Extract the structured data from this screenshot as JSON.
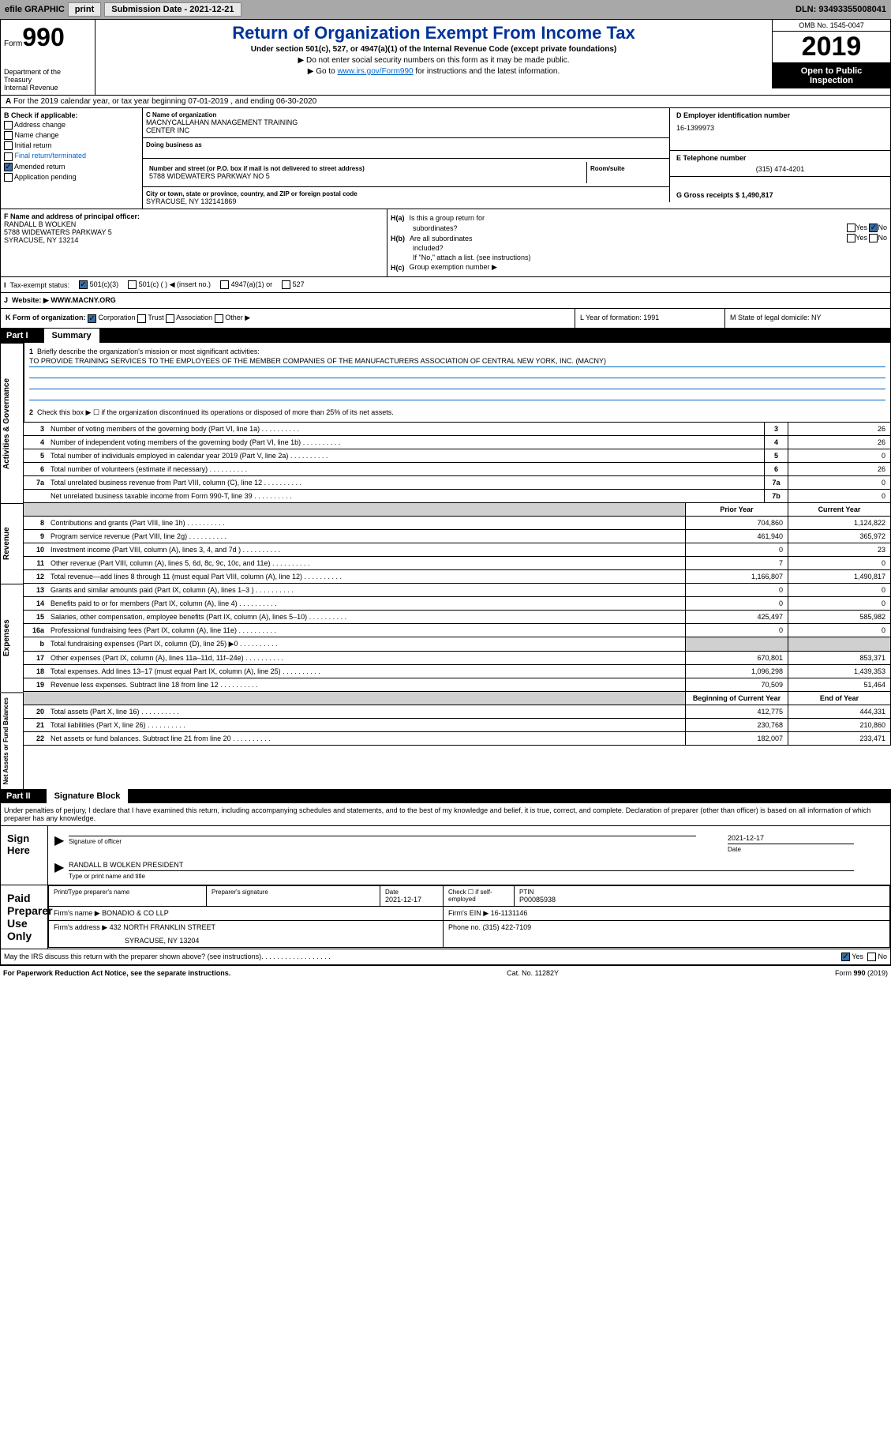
{
  "toolbar": {
    "efile_label": "efile GRAPHIC",
    "print_btn": "print",
    "sub_date_label": "Submission Date - 2021-12-21",
    "dln_label": "DLN: 93493355008041"
  },
  "header": {
    "form_prefix": "Form",
    "form_number": "990",
    "dept1": "Department of the",
    "dept2": "Treasury",
    "dept3": "Internal Revenue",
    "title": "Return of Organization Exempt From Income Tax",
    "subtitle": "Under section 501(c), 527, or 4947(a)(1) of the Internal Revenue Code (except private foundations)",
    "note1": "▶ Do not enter social security numbers on this form as it may be made public.",
    "note2_pre": "▶ Go to ",
    "note2_link": "www.irs.gov/Form990",
    "note2_post": " for instructions and the latest information.",
    "omb": "OMB No. 1545-0047",
    "year": "2019",
    "public1": "Open to Public",
    "public2": "Inspection"
  },
  "row_a": "For the 2019 calendar year, or tax year beginning 07-01-2019    , and ending 06-30-2020",
  "box_b": {
    "header": "B Check if applicable:",
    "items": [
      "Address change",
      "Name change",
      "Initial return",
      "Final return/terminated",
      "Amended return",
      "Application pending"
    ],
    "amended_checked": true
  },
  "box_c": {
    "name_label": "C Name of organization",
    "name1": "MACNYCALLAHAN MANAGEMENT TRAINING",
    "name2": "CENTER INC",
    "dba_label": "Doing business as",
    "addr_label": "Number and street (or P.O. box if mail is not delivered to street address)",
    "room_label": "Room/suite",
    "addr": "5788 WIDEWATERS PARKWAY NO 5",
    "city_label": "City or town, state or province, country, and ZIP or foreign postal code",
    "city": "SYRACUSE, NY  132141869"
  },
  "box_d": {
    "label": "D Employer identification number",
    "value": "16-1399973"
  },
  "box_e": {
    "label": "E Telephone number",
    "value": "(315) 474-4201"
  },
  "box_g": {
    "label": "G Gross receipts $ 1,490,817"
  },
  "box_f": {
    "label": "F  Name and address of principal officer:",
    "name": "RANDALL B WOLKEN",
    "addr1": "5788 WIDEWATERS PARKWAY 5",
    "addr2": "SYRACUSE, NY  13214"
  },
  "box_h": {
    "ha_label": "Is this a group return for",
    "ha_label2": "subordinates?",
    "ha_no": true,
    "hb_label": "Are all subordinates",
    "hb_label2": "included?",
    "hb_note": "If \"No,\" attach a list. (see instructions)",
    "hc_label": "Group exemption number ▶"
  },
  "tax_status": {
    "label": "Tax-exempt status:",
    "opt1": "501(c)(3)",
    "opt2": "501(c) (  ) ◀ (insert no.)",
    "opt3": "4947(a)(1) or",
    "opt4": "527"
  },
  "website": {
    "label": "Website: ▶",
    "value": "WWW.MACNY.ORG"
  },
  "box_k": {
    "label": "K Form of organization:",
    "opts": [
      "Corporation",
      "Trust",
      "Association",
      "Other ▶"
    ],
    "corp_checked": true
  },
  "box_l": "L Year of formation: 1991",
  "box_m": "M State of legal domicile: NY",
  "part1": {
    "label": "Part I",
    "title": "Summary"
  },
  "summary": {
    "q1_label": "Briefly describe the organization's mission or most significant activities:",
    "q1_text": "TO PROVIDE TRAINING SERVICES TO THE EMPLOYEES OF THE MEMBER COMPANIES OF THE MANUFACTURERS ASSOCIATION OF CENTRAL NEW YORK, INC. (MACNY)",
    "q2": "Check this box ▶ ☐ if the organization discontinued its operations or disposed of more than 25% of its net assets.",
    "lines": [
      {
        "n": "3",
        "t": "Number of voting members of the governing body (Part VI, line 1a)",
        "box": "3",
        "v": "26"
      },
      {
        "n": "4",
        "t": "Number of independent voting members of the governing body (Part VI, line 1b)",
        "box": "4",
        "v": "26"
      },
      {
        "n": "5",
        "t": "Total number of individuals employed in calendar year 2019 (Part V, line 2a)",
        "box": "5",
        "v": "0"
      },
      {
        "n": "6",
        "t": "Total number of volunteers (estimate if necessary)",
        "box": "6",
        "v": "26"
      },
      {
        "n": "7a",
        "t": "Total unrelated business revenue from Part VIII, column (C), line 12",
        "box": "7a",
        "v": "0"
      },
      {
        "n": "",
        "t": "Net unrelated business taxable income from Form 990-T, line 39",
        "box": "7b",
        "v": "0"
      }
    ],
    "col_prior": "Prior Year",
    "col_current": "Current Year",
    "revenue": [
      {
        "n": "8",
        "t": "Contributions and grants (Part VIII, line 1h)",
        "p": "704,860",
        "c": "1,124,822"
      },
      {
        "n": "9",
        "t": "Program service revenue (Part VIII, line 2g)",
        "p": "461,940",
        "c": "365,972"
      },
      {
        "n": "10",
        "t": "Investment income (Part VIII, column (A), lines 3, 4, and 7d )",
        "p": "0",
        "c": "23"
      },
      {
        "n": "11",
        "t": "Other revenue (Part VIII, column (A), lines 5, 6d, 8c, 9c, 10c, and 11e)",
        "p": "7",
        "c": "0"
      },
      {
        "n": "12",
        "t": "Total revenue—add lines 8 through 11 (must equal Part VIII, column (A), line 12)",
        "p": "1,166,807",
        "c": "1,490,817"
      }
    ],
    "expenses": [
      {
        "n": "13",
        "t": "Grants and similar amounts paid (Part IX, column (A), lines 1–3 )",
        "p": "0",
        "c": "0"
      },
      {
        "n": "14",
        "t": "Benefits paid to or for members (Part IX, column (A), line 4)",
        "p": "0",
        "c": "0"
      },
      {
        "n": "15",
        "t": "Salaries, other compensation, employee benefits (Part IX, column (A), lines 5–10)",
        "p": "425,497",
        "c": "585,982"
      },
      {
        "n": "16a",
        "t": "Professional fundraising fees (Part IX, column (A), line 11e)",
        "p": "0",
        "c": "0"
      },
      {
        "n": "b",
        "t": "Total fundraising expenses (Part IX, column (D), line 25) ▶0",
        "p": "",
        "c": "",
        "shaded": true
      },
      {
        "n": "17",
        "t": "Other expenses (Part IX, column (A), lines 11a–11d, 11f–24e)",
        "p": "670,801",
        "c": "853,371"
      },
      {
        "n": "18",
        "t": "Total expenses. Add lines 13–17 (must equal Part IX, column (A), line 25)",
        "p": "1,096,298",
        "c": "1,439,353"
      },
      {
        "n": "19",
        "t": "Revenue less expenses. Subtract line 18 from line 12",
        "p": "70,509",
        "c": "51,464"
      }
    ],
    "col_begin": "Beginning of Current Year",
    "col_end": "End of Year",
    "netassets": [
      {
        "n": "20",
        "t": "Total assets (Part X, line 16)",
        "p": "412,775",
        "c": "444,331"
      },
      {
        "n": "21",
        "t": "Total liabilities (Part X, line 26)",
        "p": "230,768",
        "c": "210,860"
      },
      {
        "n": "22",
        "t": "Net assets or fund balances. Subtract line 21 from line 20",
        "p": "182,007",
        "c": "233,471"
      }
    ],
    "vert_gov": "Activities & Governance",
    "vert_rev": "Revenue",
    "vert_exp": "Expenses",
    "vert_net": "Net Assets or Fund Balances"
  },
  "part2": {
    "label": "Part II",
    "title": "Signature Block",
    "declaration": "Under penalties of perjury, I declare that I have examined this return, including accompanying schedules and statements, and to the best of my knowledge and belief, it is true, correct, and complete. Declaration of preparer (other than officer) is based on all information of which preparer has any knowledge."
  },
  "sign": {
    "label": "Sign Here",
    "sig_date": "2021-12-17",
    "sig_label": "Signature of officer",
    "date_label": "Date",
    "name": "RANDALL B WOLKEN  PRESIDENT",
    "name_label": "Type or print name and title"
  },
  "prep": {
    "label": "Paid Preparer Use Only",
    "h1": "Print/Type preparer's name",
    "h2": "Preparer's signature",
    "h3": "Date",
    "h3v": "2021-12-17",
    "h4": "Check ☐ if self-employed",
    "h5": "PTIN",
    "h5v": "P00085938",
    "firm_label": "Firm's name    ▶",
    "firm_name": "BONADIO & CO LLP",
    "ein_label": "Firm's EIN ▶",
    "ein": "16-1131146",
    "addr_label": "Firm's address ▶",
    "addr1": "432 NORTH FRANKLIN STREET",
    "addr2": "SYRACUSE, NY  13204",
    "phone_label": "Phone no.",
    "phone": "(315) 422-7109"
  },
  "discuss": "May the IRS discuss this return with the preparer shown above? (see instructions)",
  "discuss_yes": true,
  "footer": {
    "left": "For Paperwork Reduction Act Notice, see the separate instructions.",
    "mid": "Cat. No. 11282Y",
    "right": "Form 990 (2019)"
  }
}
